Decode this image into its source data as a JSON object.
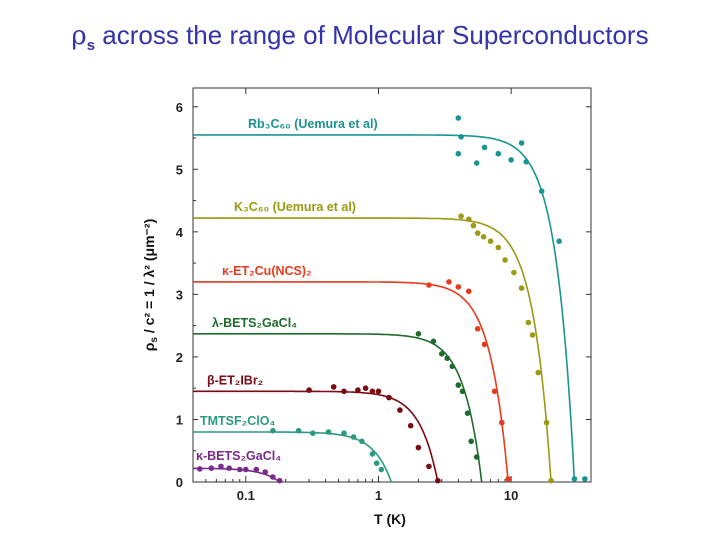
{
  "slide": {
    "title_symbol": "ρ",
    "title_sub": "s",
    "title_rest": " across the range of Molecular Superconductors"
  },
  "chart_data": {
    "type": "scatter",
    "xscale": "log",
    "xlim": [
      0.04,
      40
    ],
    "ylim": [
      0,
      6.3
    ],
    "xlabel": "T (K)",
    "ylabel_prefix": "ρ",
    "ylabel_sub": "s",
    "ylabel_rest": " / c² = 1 / λ² (μm⁻²)",
    "xticks": [
      0.1,
      1,
      10
    ],
    "xtick_labels": [
      "0.1",
      "1",
      "10"
    ],
    "yticks": [
      0,
      1,
      2,
      3,
      4,
      5,
      6
    ],
    "ytick_labels": [
      "0",
      "1",
      "2",
      "3",
      "4",
      "5",
      "6"
    ],
    "series": [
      {
        "name": "Rb₃C₆₀ (Uemura et al)",
        "color": "#1a9490",
        "rho0": 5.55,
        "Tc": 30,
        "points": [
          [
            4.0,
            5.82
          ],
          [
            4.2,
            5.52
          ],
          [
            4.0,
            5.25
          ],
          [
            6.3,
            5.35
          ],
          [
            5.5,
            5.1
          ],
          [
            8.0,
            5.25
          ],
          [
            10,
            5.15
          ],
          [
            12,
            5.42
          ],
          [
            13,
            5.12
          ],
          [
            17,
            4.65
          ],
          [
            23,
            3.85
          ],
          [
            30,
            0.05
          ],
          [
            36,
            0.05
          ]
        ]
      },
      {
        "name": "K₃C₆₀ (Uemura et al)",
        "color": "#9a9a14",
        "rho0": 4.22,
        "Tc": 20,
        "points": [
          [
            4.2,
            4.25
          ],
          [
            4.8,
            4.2
          ],
          [
            5.2,
            4.1
          ],
          [
            5.6,
            3.98
          ],
          [
            6.2,
            3.92
          ],
          [
            7.0,
            3.85
          ],
          [
            8.0,
            3.75
          ],
          [
            9.0,
            3.55
          ],
          [
            10.5,
            3.35
          ],
          [
            12,
            3.1
          ],
          [
            13.5,
            2.55
          ],
          [
            14.5,
            2.35
          ],
          [
            16,
            1.75
          ],
          [
            18.5,
            0.95
          ],
          [
            20,
            0.02
          ]
        ]
      },
      {
        "name": "κ-ET₂Cu(NCS)₂",
        "color": "#e83a1c",
        "rho0": 3.2,
        "Tc": 9.5,
        "points": [
          [
            2.4,
            3.15
          ],
          [
            3.4,
            3.2
          ],
          [
            4.0,
            3.12
          ],
          [
            4.8,
            3.05
          ],
          [
            5.6,
            2.45
          ],
          [
            6.3,
            2.2
          ],
          [
            7.5,
            1.45
          ],
          [
            8.5,
            0.95
          ],
          [
            9.5,
            0.05
          ]
        ]
      },
      {
        "name": "λ-BETS₂GaCl₄",
        "color": "#1f6b2c",
        "rho0": 2.37,
        "Tc": 6.0,
        "points": [
          [
            2.0,
            2.37
          ],
          [
            2.6,
            2.25
          ],
          [
            3.0,
            2.05
          ],
          [
            3.3,
            1.98
          ],
          [
            3.6,
            1.85
          ],
          [
            4.0,
            1.55
          ],
          [
            4.3,
            1.45
          ],
          [
            4.7,
            1.1
          ],
          [
            5.0,
            0.65
          ],
          [
            5.5,
            0.4
          ]
        ]
      },
      {
        "name": "β-ET₂IBr₂",
        "color": "#7a0a14",
        "rho0": 1.45,
        "Tc": 2.8,
        "points": [
          [
            0.3,
            1.47
          ],
          [
            0.46,
            1.52
          ],
          [
            0.55,
            1.45
          ],
          [
            0.7,
            1.47
          ],
          [
            0.8,
            1.5
          ],
          [
            0.9,
            1.45
          ],
          [
            1.0,
            1.45
          ],
          [
            1.2,
            1.35
          ],
          [
            1.45,
            1.15
          ],
          [
            1.75,
            0.9
          ],
          [
            2.0,
            0.55
          ],
          [
            2.4,
            0.25
          ],
          [
            2.8,
            0.02
          ]
        ]
      },
      {
        "name": "TMTSF₂ClO₄",
        "color": "#2a9a80",
        "rho0": 0.8,
        "Tc": 1.25,
        "points": [
          [
            0.16,
            0.82
          ],
          [
            0.25,
            0.82
          ],
          [
            0.32,
            0.78
          ],
          [
            0.42,
            0.8
          ],
          [
            0.55,
            0.78
          ],
          [
            0.65,
            0.72
          ],
          [
            0.75,
            0.65
          ],
          [
            0.9,
            0.45
          ],
          [
            0.97,
            0.3
          ],
          [
            1.05,
            0.2
          ]
        ]
      },
      {
        "name": "κ-BETS₂GaCl₄",
        "color": "#7a2a8a",
        "rho0": 0.22,
        "Tc": 0.18,
        "points": [
          [
            0.045,
            0.21
          ],
          [
            0.055,
            0.22
          ],
          [
            0.065,
            0.25
          ],
          [
            0.075,
            0.22
          ],
          [
            0.09,
            0.2
          ],
          [
            0.1,
            0.2
          ],
          [
            0.12,
            0.2
          ],
          [
            0.14,
            0.16
          ],
          [
            0.16,
            0.08
          ],
          [
            0.18,
            0.02
          ]
        ]
      }
    ]
  }
}
